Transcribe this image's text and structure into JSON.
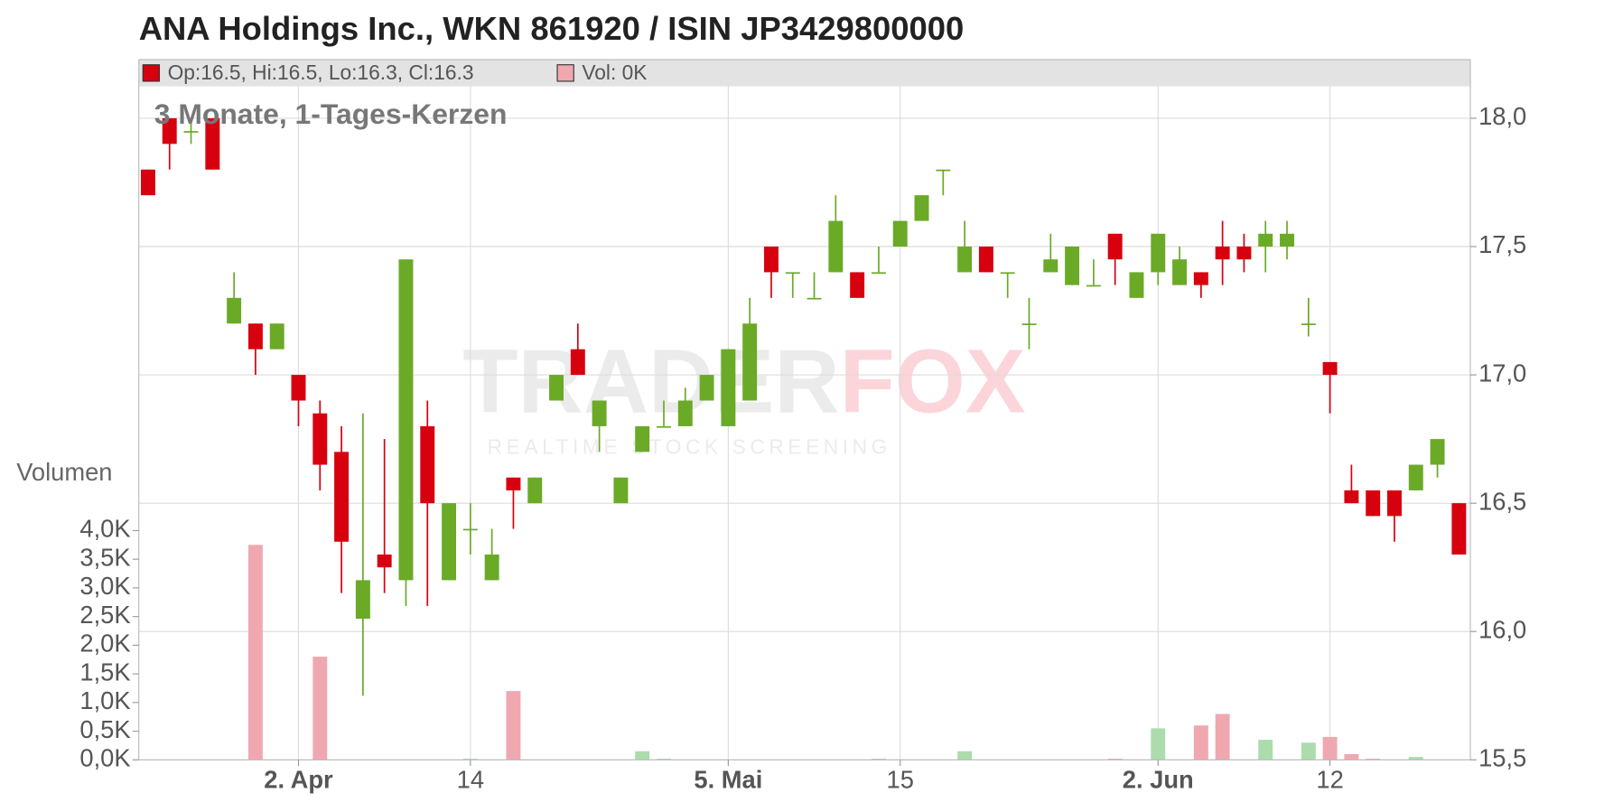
{
  "chart_data": {
    "type": "candlestick",
    "title": "ANA Holdings Inc., WKN 861920 / ISIN JP3429800000",
    "subtitle": "3 Monate, 1-Tages-Kerzen",
    "legend": {
      "price": "Op:16.5, Hi:16.5, Lo:16.3, Cl:16.3",
      "volume": "Vol: 0K"
    },
    "watermark": {
      "brand_1": "TRADER",
      "brand_2": "FOX",
      "tagline": "REALTIME STOCK SCREENING"
    },
    "volume_axis_label": "Volumen",
    "categories": [
      null,
      null,
      null,
      null,
      null,
      null,
      null,
      "2. Apr",
      null,
      null,
      null,
      null,
      null,
      null,
      null,
      "14",
      null,
      null,
      null,
      null,
      null,
      null,
      null,
      null,
      null,
      null,
      null,
      "5. Mai",
      null,
      null,
      null,
      null,
      null,
      null,
      null,
      "15",
      null,
      null,
      null,
      null,
      null,
      null,
      null,
      null,
      null,
      null,
      null,
      "2. Jun",
      null,
      null,
      null,
      null,
      null,
      null,
      null,
      "12",
      null,
      null,
      null,
      null,
      null,
      null
    ],
    "open": [
      17.8,
      18.0,
      17.95,
      18.0,
      17.2,
      17.2,
      17.1,
      17.0,
      16.85,
      16.7,
      16.05,
      16.3,
      16.2,
      16.8,
      16.2,
      16.4,
      16.2,
      16.6,
      16.5,
      16.9,
      17.1,
      16.8,
      16.5,
      16.7,
      16.8,
      16.8,
      16.9,
      16.8,
      16.9,
      17.5,
      17.4,
      17.3,
      17.4,
      17.4,
      17.4,
      17.5,
      17.6,
      17.8,
      17.4,
      17.5,
      17.4,
      17.2,
      17.4,
      17.35,
      17.35,
      17.55,
      17.3,
      17.4,
      17.35,
      17.4,
      17.5,
      17.5,
      17.5,
      17.5,
      17.2,
      17.05,
      16.55,
      16.55,
      16.55,
      16.55,
      16.65,
      16.5
    ],
    "high": [
      17.8,
      18.0,
      18.0,
      18.0,
      17.4,
      17.2,
      17.2,
      17.0,
      16.9,
      16.8,
      16.85,
      16.75,
      17.45,
      16.9,
      16.5,
      16.5,
      16.4,
      16.6,
      16.6,
      17.0,
      17.2,
      16.9,
      16.6,
      16.8,
      16.9,
      16.95,
      17.0,
      17.1,
      17.3,
      17.5,
      17.4,
      17.4,
      17.7,
      17.4,
      17.5,
      17.6,
      17.7,
      17.8,
      17.6,
      17.5,
      17.4,
      17.3,
      17.55,
      17.5,
      17.45,
      17.55,
      17.4,
      17.55,
      17.5,
      17.4,
      17.6,
      17.55,
      17.6,
      17.6,
      17.3,
      17.05,
      16.65,
      16.55,
      16.55,
      16.65,
      16.75,
      16.5
    ],
    "low": [
      17.7,
      17.8,
      17.9,
      17.8,
      17.2,
      17.0,
      17.1,
      16.8,
      16.55,
      16.15,
      15.75,
      16.15,
      16.1,
      16.1,
      16.2,
      16.3,
      16.2,
      16.4,
      16.5,
      16.9,
      17.0,
      16.7,
      16.5,
      16.7,
      16.8,
      16.8,
      16.9,
      16.8,
      16.9,
      17.3,
      17.3,
      17.3,
      17.4,
      17.3,
      17.4,
      17.5,
      17.6,
      17.7,
      17.4,
      17.4,
      17.3,
      17.1,
      17.4,
      17.35,
      17.35,
      17.35,
      17.3,
      17.35,
      17.35,
      17.3,
      17.35,
      17.4,
      17.4,
      17.45,
      17.15,
      16.85,
      16.5,
      16.45,
      16.35,
      16.55,
      16.6,
      16.3
    ],
    "close": [
      17.7,
      17.9,
      17.95,
      17.8,
      17.3,
      17.1,
      17.2,
      16.9,
      16.65,
      16.35,
      16.2,
      16.25,
      17.45,
      16.5,
      16.5,
      16.4,
      16.3,
      16.55,
      16.6,
      17.0,
      17.0,
      16.9,
      16.6,
      16.8,
      16.8,
      16.9,
      17.0,
      17.1,
      17.2,
      17.4,
      17.4,
      17.3,
      17.6,
      17.3,
      17.4,
      17.6,
      17.7,
      17.8,
      17.5,
      17.4,
      17.4,
      17.2,
      17.45,
      17.5,
      17.35,
      17.45,
      17.4,
      17.55,
      17.45,
      17.35,
      17.45,
      17.45,
      17.55,
      17.55,
      17.2,
      17.0,
      16.5,
      16.45,
      16.45,
      16.65,
      16.75,
      16.3
    ],
    "volume": [
      0,
      0,
      0,
      0,
      0,
      3.75,
      0,
      0,
      1.8,
      0,
      0,
      0,
      0,
      0,
      0,
      0.02,
      0,
      1.2,
      0,
      0,
      0,
      0,
      0,
      0.15,
      0.02,
      0,
      0,
      0,
      0,
      0,
      0,
      0,
      0,
      0,
      0.02,
      0,
      0,
      0,
      0.15,
      0,
      0,
      0,
      0,
      0,
      0,
      0.02,
      0,
      0.55,
      0,
      0.6,
      0.8,
      0,
      0.35,
      0,
      0.3,
      0.4,
      0.1,
      0.02,
      0,
      0.05,
      0,
      0
    ],
    "colors": {
      "up": "#6aaa27",
      "down": "#d7000f",
      "volume_up": "#acdcac",
      "volume_down": "#f0a8b0"
    },
    "ylim": [
      15.5,
      18.0
    ],
    "yticks": [
      {
        "value": 15.5,
        "label": "15,5"
      },
      {
        "value": 16.0,
        "label": "16,0"
      },
      {
        "value": 16.5,
        "label": "16,5"
      },
      {
        "value": 17.0,
        "label": "17,0"
      },
      {
        "value": 17.5,
        "label": "17,5"
      },
      {
        "value": 18.0,
        "label": "18,0"
      }
    ],
    "volume_ylim": [
      0,
      4.0
    ],
    "volume_yticks": [
      {
        "value": 0,
        "label": "0,0K"
      },
      {
        "value": 0.5,
        "label": "0,5K"
      },
      {
        "value": 1.0,
        "label": "1,0K"
      },
      {
        "value": 1.5,
        "label": "1,5K"
      },
      {
        "value": 2.0,
        "label": "2,0K"
      },
      {
        "value": 2.5,
        "label": "2,5K"
      },
      {
        "value": 3.0,
        "label": "3,0K"
      },
      {
        "value": 3.5,
        "label": "3,5K"
      },
      {
        "value": 4.0,
        "label": "4,0K"
      }
    ],
    "grid": true
  }
}
